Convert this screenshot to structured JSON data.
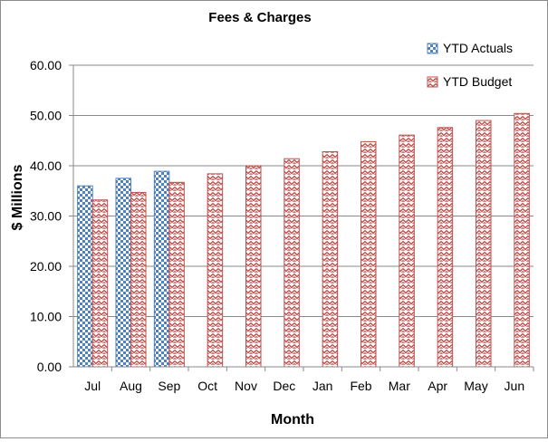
{
  "chart_data": {
    "type": "bar",
    "title": "Fees & Charges",
    "xlabel": "Month",
    "ylabel": "$ Millions",
    "categories": [
      "Jul",
      "Aug",
      "Sep",
      "Oct",
      "Nov",
      "Dec",
      "Jan",
      "Feb",
      "Mar",
      "Apr",
      "May",
      "Jun"
    ],
    "ylim": [
      0,
      60
    ],
    "yticks": [
      "0.00",
      "10.00",
      "20.00",
      "30.00",
      "40.00",
      "50.00",
      "60.00"
    ],
    "grid": true,
    "legend_position": "top-right",
    "series": [
      {
        "name": "YTD Actuals",
        "color": "#4f81bd",
        "pattern": "checkerboard",
        "values": [
          36.0,
          37.5,
          38.9,
          null,
          null,
          null,
          null,
          null,
          null,
          null,
          null,
          null
        ]
      },
      {
        "name": "YTD Budget",
        "color": "#c0504d",
        "pattern": "zigzag",
        "values": [
          33.2,
          34.7,
          36.7,
          38.4,
          40.0,
          41.4,
          42.8,
          44.8,
          46.1,
          47.6,
          49.0,
          50.4
        ]
      }
    ]
  }
}
